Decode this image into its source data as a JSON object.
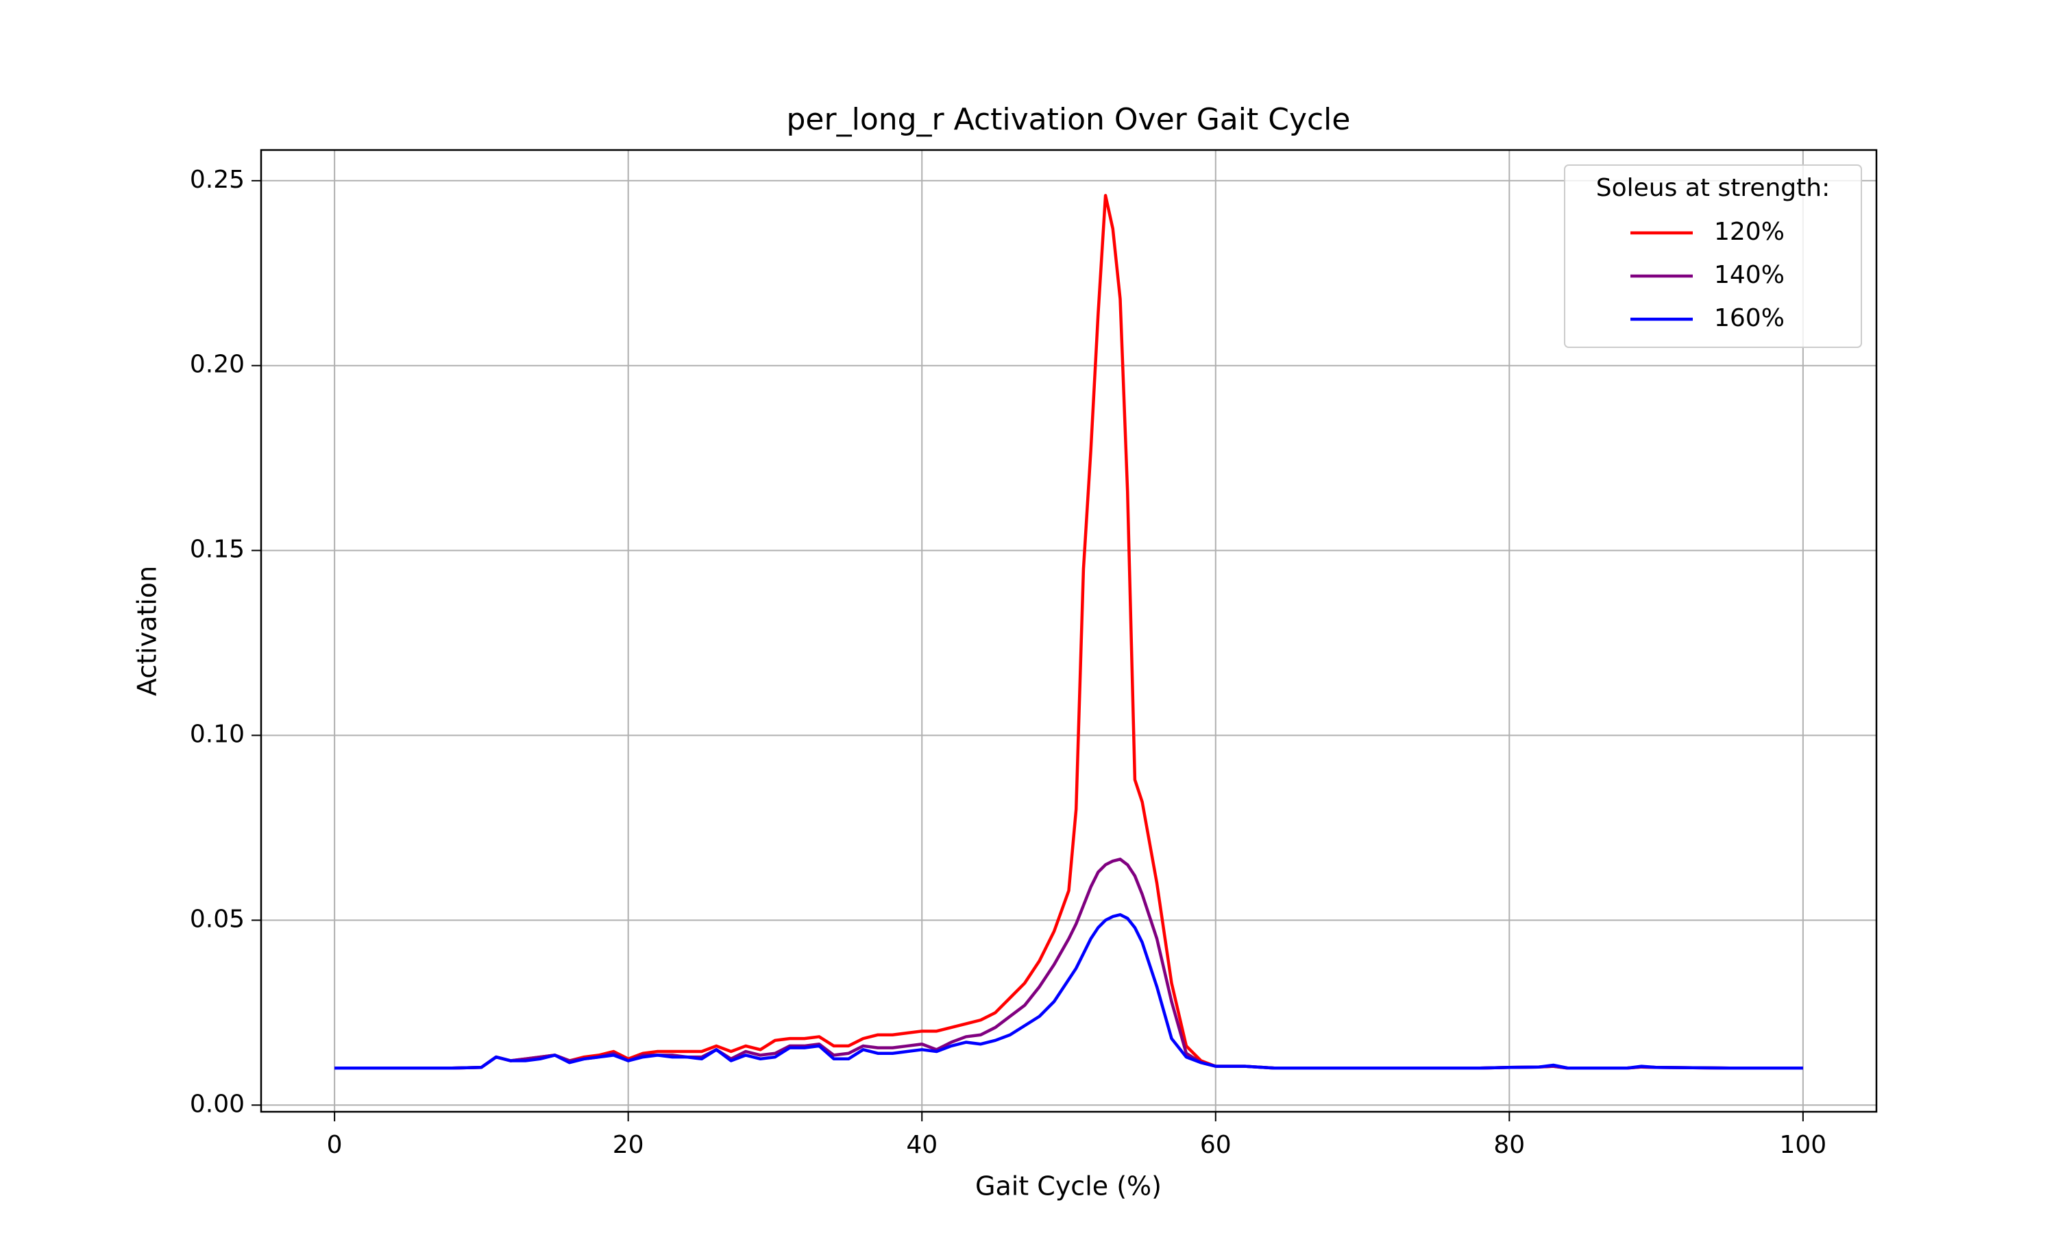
{
  "chart_data": {
    "type": "line",
    "title": "per_long_r Activation Over Gait Cycle",
    "x_label": "Gait Cycle (%)",
    "y_label": "Activation",
    "legend_title": "Soleus at strength:",
    "legend_position": "upper right",
    "grid": true,
    "x": [
      0,
      2,
      4,
      6,
      8,
      10,
      11,
      12,
      13,
      14,
      15,
      16,
      17,
      18,
      19,
      20,
      21,
      22,
      23,
      24,
      25,
      26,
      27,
      28,
      29,
      30,
      31,
      32,
      33,
      34,
      35,
      36,
      37,
      38,
      39,
      40,
      41,
      42,
      43,
      44,
      45,
      46,
      47,
      48,
      49,
      50,
      50.5,
      51,
      51.5,
      52,
      52.5,
      53,
      53.5,
      54,
      54.5,
      55,
      56,
      57,
      58,
      59,
      60,
      62,
      64,
      70,
      78,
      80,
      82,
      83,
      84,
      88,
      89,
      90,
      95,
      100
    ],
    "series": [
      {
        "name": "120%",
        "color": "#ff0000",
        "values": [
          0.01,
          0.01,
          0.01,
          0.01,
          0.01,
          0.0102,
          0.013,
          0.012,
          0.0125,
          0.013,
          0.0135,
          0.012,
          0.013,
          0.0135,
          0.0145,
          0.0125,
          0.014,
          0.0145,
          0.0145,
          0.0145,
          0.0145,
          0.016,
          0.0145,
          0.016,
          0.015,
          0.0175,
          0.018,
          0.018,
          0.0185,
          0.016,
          0.016,
          0.018,
          0.019,
          0.019,
          0.0195,
          0.02,
          0.02,
          0.021,
          0.022,
          0.023,
          0.025,
          0.029,
          0.033,
          0.039,
          0.047,
          0.058,
          0.08,
          0.145,
          0.177,
          0.214,
          0.246,
          0.237,
          0.218,
          0.166,
          0.088,
          0.082,
          0.06,
          0.033,
          0.016,
          0.012,
          0.0105,
          0.0105,
          0.01,
          0.01,
          0.01,
          0.0102,
          0.0103,
          0.0105,
          0.01,
          0.01,
          0.0103,
          0.0102,
          0.01,
          0.01
        ]
      },
      {
        "name": "140%",
        "color": "#800080",
        "values": [
          0.01,
          0.01,
          0.01,
          0.01,
          0.01,
          0.0102,
          0.013,
          0.012,
          0.0125,
          0.013,
          0.0135,
          0.012,
          0.0125,
          0.013,
          0.014,
          0.012,
          0.0135,
          0.0135,
          0.0135,
          0.013,
          0.013,
          0.015,
          0.0125,
          0.0145,
          0.0135,
          0.014,
          0.016,
          0.016,
          0.0165,
          0.0135,
          0.014,
          0.016,
          0.0155,
          0.0155,
          0.016,
          0.0165,
          0.015,
          0.017,
          0.0185,
          0.019,
          0.021,
          0.024,
          0.027,
          0.032,
          0.038,
          0.045,
          0.049,
          0.054,
          0.059,
          0.063,
          0.065,
          0.066,
          0.0665,
          0.065,
          0.062,
          0.057,
          0.045,
          0.028,
          0.014,
          0.0115,
          0.0105,
          0.0105,
          0.01,
          0.01,
          0.01,
          0.0102,
          0.0103,
          0.0105,
          0.01,
          0.01,
          0.0103,
          0.0102,
          0.01,
          0.01
        ]
      },
      {
        "name": "160%",
        "color": "#0000ff",
        "values": [
          0.01,
          0.01,
          0.01,
          0.01,
          0.01,
          0.0102,
          0.013,
          0.012,
          0.012,
          0.0125,
          0.0135,
          0.0115,
          0.0125,
          0.013,
          0.0135,
          0.012,
          0.013,
          0.0135,
          0.013,
          0.013,
          0.0125,
          0.015,
          0.012,
          0.0135,
          0.0125,
          0.013,
          0.0155,
          0.0155,
          0.016,
          0.0125,
          0.0125,
          0.015,
          0.014,
          0.014,
          0.0145,
          0.015,
          0.0145,
          0.016,
          0.017,
          0.0165,
          0.0175,
          0.019,
          0.0215,
          0.024,
          0.028,
          0.034,
          0.037,
          0.041,
          0.045,
          0.048,
          0.05,
          0.051,
          0.0515,
          0.0505,
          0.048,
          0.044,
          0.032,
          0.018,
          0.013,
          0.0115,
          0.0105,
          0.0105,
          0.01,
          0.01,
          0.01,
          0.0102,
          0.0103,
          0.0108,
          0.01,
          0.01,
          0.0105,
          0.0102,
          0.01,
          0.01
        ]
      }
    ],
    "xlim": [
      -5,
      105
    ],
    "ylim": [
      -0.0018,
      0.2583
    ],
    "xticks": [
      0,
      20,
      40,
      60,
      80,
      100
    ],
    "yticks": [
      {
        "value": 0,
        "label": "0.00"
      },
      {
        "value": 0.05,
        "label": "0.05"
      },
      {
        "value": 0.1,
        "label": "0.10"
      },
      {
        "value": 0.15,
        "label": "0.15"
      },
      {
        "value": 0.2,
        "label": "0.20"
      },
      {
        "value": 0.25,
        "label": "0.25"
      }
    ]
  }
}
